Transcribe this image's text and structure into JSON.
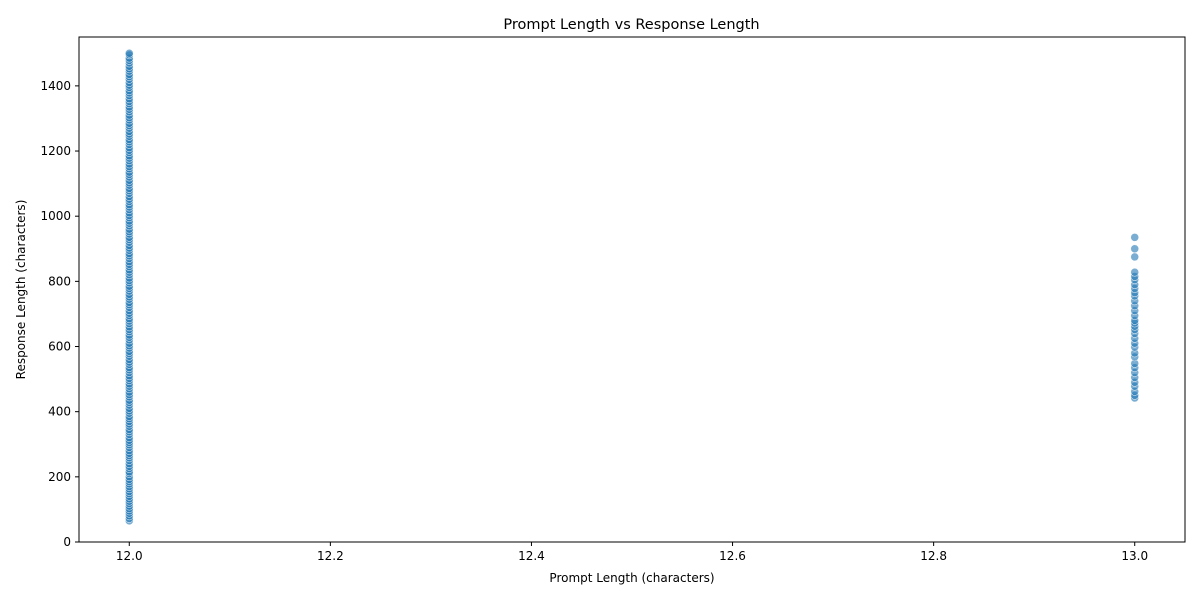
{
  "chart_data": {
    "type": "scatter",
    "title": "Prompt Length vs Response Length",
    "xlabel": "Prompt Length (characters)",
    "ylabel": "Response Length (characters)",
    "xlim": [
      11.95,
      13.05
    ],
    "ylim": [
      0,
      1550
    ],
    "xticks": [
      12.0,
      12.2,
      12.4,
      12.6,
      12.8,
      13.0
    ],
    "xtick_labels": [
      "12.0",
      "12.2",
      "12.4",
      "12.6",
      "12.8",
      "13.0"
    ],
    "yticks": [
      0,
      200,
      400,
      600,
      800,
      1000,
      1200,
      1400
    ],
    "ytick_labels": [
      "0",
      "200",
      "400",
      "600",
      "800",
      "1000",
      "1200",
      "1400"
    ],
    "grid": false,
    "marker_color": "#1f77b4",
    "series": [
      {
        "x": 12,
        "y": [
          65,
          72,
          80,
          88,
          95,
          102,
          110,
          118,
          125,
          132,
          140,
          148,
          155,
          163,
          170,
          178,
          185,
          192,
          200,
          210,
          215,
          225,
          232,
          240,
          250,
          258,
          265,
          272,
          280,
          290,
          298,
          305,
          312,
          320,
          330,
          338,
          345,
          355,
          362,
          370,
          378,
          385,
          395,
          402,
          410,
          420,
          428,
          435,
          445,
          452,
          460,
          470,
          478,
          485,
          495,
          502,
          510,
          520,
          528,
          535,
          545,
          552,
          560,
          570,
          578,
          585,
          595,
          602,
          610,
          620,
          628,
          635,
          645,
          652,
          660,
          670,
          678,
          685,
          695,
          702,
          710,
          720,
          728,
          735,
          745,
          752,
          760,
          770,
          778,
          785,
          795,
          802,
          810,
          820,
          828,
          835,
          845,
          852,
          860,
          870,
          878,
          885,
          895,
          902,
          910,
          920,
          928,
          935,
          945,
          952,
          960,
          970,
          978,
          985,
          995,
          1002,
          1010,
          1020,
          1028,
          1035,
          1045,
          1052,
          1060,
          1070,
          1078,
          1085,
          1095,
          1102,
          1110,
          1120,
          1128,
          1135,
          1145,
          1152,
          1160,
          1170,
          1178,
          1185,
          1195,
          1202,
          1210,
          1220,
          1228,
          1235,
          1245,
          1252,
          1260,
          1270,
          1278,
          1285,
          1295,
          1302,
          1310,
          1320,
          1328,
          1335,
          1345,
          1352,
          1360,
          1370,
          1378,
          1385,
          1395,
          1402,
          1410,
          1420,
          1428,
          1435,
          1445,
          1452,
          1460,
          1470,
          1478,
          1485,
          1495,
          1500
        ]
      },
      {
        "x": 13,
        "y": [
          442,
          450,
          462,
          478,
          490,
          505,
          520,
          535,
          548,
          568,
          580,
          598,
          610,
          625,
          640,
          652,
          662,
          672,
          680,
          695,
          710,
          725,
          740,
          755,
          765,
          778,
          790,
          805,
          815,
          828,
          875,
          900,
          935
        ]
      }
    ]
  }
}
